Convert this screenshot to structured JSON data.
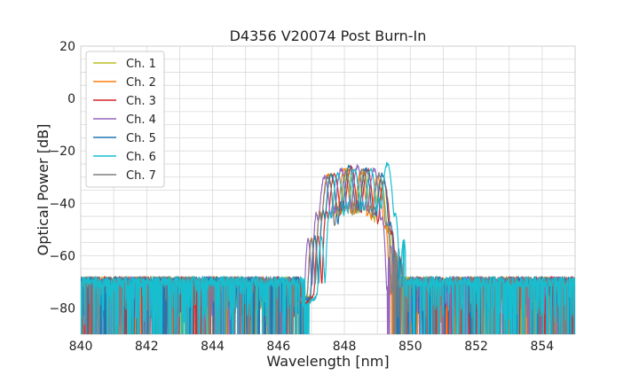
{
  "chart_data": {
    "type": "line",
    "title": "D4356 V20074 Post Burn-In",
    "xlabel": "Wavelength [nm]",
    "ylabel": "Optical Power [dB]",
    "xlim": [
      840,
      855
    ],
    "ylim": [
      -90,
      20
    ],
    "xticks": [
      840,
      842,
      844,
      846,
      848,
      850,
      852,
      854
    ],
    "yticks": [
      20,
      0,
      -20,
      -40,
      -60,
      -80
    ],
    "grid": true,
    "legend_position": "top-left",
    "noise_floor_db": -70,
    "series": [
      {
        "name": "Ch. 1",
        "color": "#bcbd22",
        "peaks": [
          {
            "x": 847.6,
            "y": -29
          },
          {
            "x": 848.1,
            "y": -27
          },
          {
            "x": 848.6,
            "y": -28
          },
          {
            "x": 849.1,
            "y": -31
          }
        ]
      },
      {
        "name": "Ch. 2",
        "color": "#ff7f0e",
        "peaks": [
          {
            "x": 847.5,
            "y": -29
          },
          {
            "x": 848.0,
            "y": -27
          },
          {
            "x": 848.5,
            "y": -28
          },
          {
            "x": 849.0,
            "y": -30
          }
        ]
      },
      {
        "name": "Ch. 3",
        "color": "#d62728",
        "peaks": [
          {
            "x": 847.7,
            "y": -29
          },
          {
            "x": 848.2,
            "y": -26
          },
          {
            "x": 848.7,
            "y": -27
          },
          {
            "x": 849.2,
            "y": -32
          }
        ]
      },
      {
        "name": "Ch. 4",
        "color": "#9467bd",
        "peaks": [
          {
            "x": 847.4,
            "y": -30
          },
          {
            "x": 847.9,
            "y": -27
          },
          {
            "x": 848.4,
            "y": -26
          },
          {
            "x": 848.9,
            "y": -27
          }
        ]
      },
      {
        "name": "Ch. 5",
        "color": "#1f77b4",
        "peaks": [
          {
            "x": 847.6,
            "y": -29
          },
          {
            "x": 848.15,
            "y": -26
          },
          {
            "x": 848.65,
            "y": -27
          },
          {
            "x": 849.15,
            "y": -29
          }
        ]
      },
      {
        "name": "Ch. 6",
        "color": "#17becf",
        "peaks": [
          {
            "x": 847.8,
            "y": -29
          },
          {
            "x": 848.3,
            "y": -27
          },
          {
            "x": 848.8,
            "y": -27
          },
          {
            "x": 849.3,
            "y": -25
          }
        ]
      },
      {
        "name": "Ch. 7",
        "color": "#7f7f7f",
        "peaks": [
          {
            "x": 847.5,
            "y": -30
          },
          {
            "x": 848.05,
            "y": -28
          },
          {
            "x": 848.55,
            "y": -27
          },
          {
            "x": 849.05,
            "y": -29
          }
        ]
      }
    ]
  }
}
